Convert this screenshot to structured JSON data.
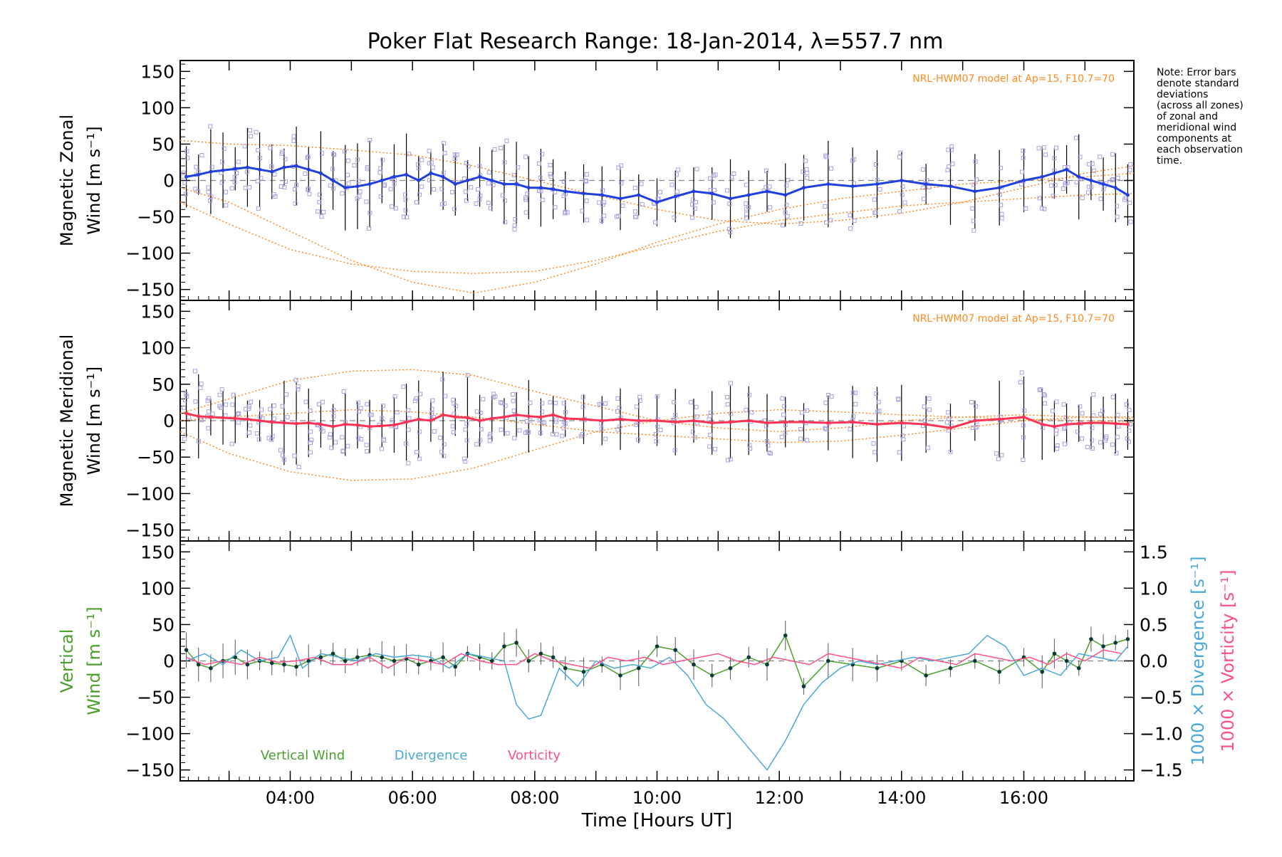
{
  "title": "Poker Flat Research Range: 18-Jan-2014, λ=557.7 nm",
  "note_lines": [
    "Note: Error bars",
    "denote standard",
    "deviations",
    "(across all zones)",
    "of zonal and",
    "meridional wind",
    "components at",
    "each observation",
    "time."
  ],
  "model_label": "NRL-HWM07 model at Ap=15, F10.7=70",
  "colors": {
    "zonal": "#1f3fe0",
    "meridional": "#ff3355",
    "vertical": "#4aa02a",
    "divergence": "#4aa8d8",
    "vorticity": "#ff4f8b",
    "model": "#ff8a1f",
    "scatter": "#a7a0dd",
    "errorbar": "#000000",
    "axis": "#000000",
    "zero": "#888888"
  },
  "chart_data": [
    {
      "type": "line",
      "panel": "zonal",
      "ylabel_lines": [
        "Magnetic Zonal",
        "Wind [m s⁻¹]"
      ],
      "ylim": [
        -165,
        165
      ],
      "yticks": [
        -150,
        -100,
        -50,
        0,
        50,
        100,
        150
      ],
      "xlim": [
        2.2,
        17.8
      ],
      "model_label": "NRL-HWM07 model at Ap=15, F10.7=70",
      "series": [
        {
          "x": [
            2.3,
            2.5,
            2.7,
            2.9,
            3.1,
            3.3,
            3.5,
            3.7,
            3.9,
            4.1,
            4.3,
            4.5,
            4.7,
            4.9,
            5.1,
            5.3,
            5.5,
            5.7,
            5.9,
            6.1,
            6.3,
            6.5,
            6.7,
            6.9,
            7.1,
            7.3,
            7.5,
            7.7,
            7.9,
            8.1,
            8.3,
            8.5,
            8.8,
            9.1,
            9.4,
            9.7,
            10.0,
            10.3,
            10.6,
            10.9,
            11.2,
            11.5,
            11.8,
            12.1,
            12.4,
            12.8,
            13.2,
            13.6,
            14.0,
            14.4,
            14.8,
            15.2,
            15.6,
            16.0,
            16.3,
            16.5,
            16.7,
            16.9,
            17.1,
            17.3,
            17.5,
            17.7
          ],
          "y": [
            5,
            8,
            12,
            14,
            16,
            18,
            15,
            12,
            18,
            20,
            15,
            10,
            0,
            -10,
            -8,
            -5,
            0,
            5,
            8,
            0,
            10,
            5,
            -5,
            0,
            5,
            0,
            -5,
            -5,
            -10,
            -10,
            -12,
            -15,
            -18,
            -20,
            -25,
            -20,
            -30,
            -22,
            -15,
            -18,
            -25,
            -20,
            -15,
            -20,
            -10,
            -5,
            -8,
            -5,
            0,
            -5,
            -8,
            -15,
            -10,
            0,
            5,
            10,
            15,
            5,
            0,
            -5,
            -10,
            -20
          ]
        }
      ],
      "model_curves": [
        {
          "x": [
            2.2,
            3,
            4,
            5,
            6,
            7,
            8,
            9,
            10,
            11,
            12,
            13,
            14,
            15,
            16,
            17,
            17.8
          ],
          "y": [
            55,
            50,
            48,
            42,
            35,
            20,
            0,
            -20,
            -40,
            -55,
            -60,
            -55,
            -45,
            -30,
            -10,
            10,
            20
          ]
        },
        {
          "x": [
            2.2,
            3,
            4,
            5,
            6,
            7,
            8,
            9,
            10,
            11,
            12,
            13,
            14,
            15,
            16,
            17,
            17.8
          ],
          "y": [
            -10,
            -30,
            -70,
            -110,
            -140,
            -155,
            -140,
            -115,
            -85,
            -60,
            -40,
            -25,
            -15,
            -5,
            0,
            5,
            10
          ]
        },
        {
          "x": [
            2.2,
            3,
            4,
            5,
            6,
            7,
            8,
            9,
            10,
            11,
            12,
            13,
            14,
            15,
            16,
            17,
            17.8
          ],
          "y": [
            -30,
            -60,
            -95,
            -115,
            -125,
            -128,
            -125,
            -110,
            -90,
            -70,
            -55,
            -45,
            -35,
            -30,
            -25,
            -20,
            -18
          ]
        }
      ]
    },
    {
      "type": "line",
      "panel": "meridional",
      "ylabel_lines": [
        "Magnetic Meridional",
        "Wind [m s⁻¹]"
      ],
      "ylim": [
        -165,
        165
      ],
      "yticks": [
        -150,
        -100,
        -50,
        0,
        50,
        100,
        150
      ],
      "xlim": [
        2.2,
        17.8
      ],
      "model_label": "NRL-HWM07 model at Ap=15, F10.7=70",
      "series": [
        {
          "x": [
            2.3,
            2.5,
            2.7,
            2.9,
            3.1,
            3.3,
            3.5,
            3.7,
            3.9,
            4.1,
            4.3,
            4.5,
            4.7,
            4.9,
            5.1,
            5.3,
            5.5,
            5.7,
            5.9,
            6.1,
            6.3,
            6.5,
            6.7,
            6.9,
            7.1,
            7.3,
            7.5,
            7.7,
            7.9,
            8.1,
            8.3,
            8.5,
            8.8,
            9.1,
            9.4,
            9.7,
            10.0,
            10.3,
            10.6,
            10.9,
            11.2,
            11.5,
            11.8,
            12.1,
            12.4,
            12.8,
            13.2,
            13.6,
            14.0,
            14.4,
            14.8,
            15.2,
            15.6,
            16.0,
            16.3,
            16.5,
            16.7,
            16.9,
            17.1,
            17.3,
            17.5,
            17.7
          ],
          "y": [
            10,
            6,
            5,
            4,
            3,
            2,
            0,
            -2,
            -3,
            -4,
            -3,
            -5,
            -8,
            -5,
            -6,
            -8,
            -7,
            -6,
            -2,
            2,
            0,
            8,
            5,
            4,
            0,
            3,
            5,
            8,
            6,
            5,
            8,
            3,
            2,
            0,
            2,
            0,
            0,
            -2,
            0,
            -3,
            -2,
            0,
            -3,
            -2,
            -2,
            -3,
            -2,
            -5,
            -3,
            -5,
            -10,
            0,
            2,
            5,
            -5,
            -8,
            -5,
            -4,
            -3,
            -3,
            -4,
            -5
          ]
        }
      ],
      "model_curves": [
        {
          "x": [
            2.2,
            3,
            4,
            5,
            6,
            7,
            8,
            9,
            10,
            11,
            12,
            13,
            14,
            15,
            16,
            17,
            17.8
          ],
          "y": [
            10,
            30,
            55,
            68,
            70,
            62,
            40,
            20,
            0,
            -10,
            -15,
            -10,
            0,
            5,
            8,
            5,
            3
          ]
        },
        {
          "x": [
            2.2,
            3,
            4,
            5,
            6,
            7,
            8,
            9,
            10,
            11,
            12,
            13,
            14,
            15,
            16,
            17,
            17.8
          ],
          "y": [
            -15,
            -45,
            -70,
            -82,
            -80,
            -65,
            -40,
            -15,
            0,
            10,
            15,
            12,
            8,
            5,
            2,
            0,
            -2
          ]
        },
        {
          "x": [
            2.2,
            3,
            4,
            5,
            6,
            7,
            8,
            9,
            10,
            11,
            12,
            13,
            14,
            15,
            16,
            17,
            17.8
          ],
          "y": [
            0,
            5,
            10,
            15,
            12,
            5,
            -5,
            -15,
            -20,
            -25,
            -30,
            -28,
            -20,
            -10,
            0,
            5,
            5
          ]
        }
      ]
    },
    {
      "type": "line",
      "panel": "vertical",
      "ylabel_left_lines": [
        "Vertical",
        "Wind [m s⁻¹]"
      ],
      "ylabel_right_1": "1000 × Divergence [s⁻¹]",
      "ylabel_right_2": "1000 × Vorticity [s⁻¹]",
      "ylim": [
        -165,
        165
      ],
      "yticks": [
        -150,
        -100,
        -50,
        0,
        50,
        100,
        150
      ],
      "y2lim": [
        -1.65,
        1.65
      ],
      "y2ticks": [
        -1.5,
        -1.0,
        -0.5,
        0.0,
        0.5,
        1.0,
        1.5
      ],
      "y2ticklabels": [
        "−1.5",
        "−1.0",
        "−0.5",
        "0.0",
        "0.5",
        "1.0",
        "1.5"
      ],
      "xlim": [
        2.2,
        17.8
      ],
      "xticks": [
        4,
        6,
        8,
        10,
        12,
        14,
        16
      ],
      "xticklabels": [
        "04:00",
        "06:00",
        "08:00",
        "10:00",
        "12:00",
        "14:00",
        "16:00"
      ],
      "xlabel": "Time [Hours UT]",
      "legend": [
        "Vertical Wind",
        "Divergence",
        "Vorticity"
      ],
      "series": [
        {
          "name": "Vertical Wind",
          "x": [
            2.3,
            2.5,
            2.7,
            2.9,
            3.1,
            3.3,
            3.5,
            3.7,
            3.9,
            4.1,
            4.3,
            4.5,
            4.7,
            4.9,
            5.1,
            5.3,
            5.5,
            5.7,
            5.9,
            6.1,
            6.3,
            6.5,
            6.7,
            6.9,
            7.1,
            7.3,
            7.5,
            7.7,
            7.9,
            8.1,
            8.3,
            8.5,
            8.8,
            9.1,
            9.4,
            9.7,
            10.0,
            10.3,
            10.6,
            10.9,
            11.2,
            11.5,
            11.8,
            12.1,
            12.4,
            12.8,
            13.2,
            13.6,
            14.0,
            14.4,
            14.8,
            15.2,
            15.6,
            16.0,
            16.3,
            16.5,
            16.7,
            16.9,
            17.1,
            17.3,
            17.5,
            17.7
          ],
          "y": [
            15,
            -5,
            -10,
            0,
            5,
            -5,
            0,
            -3,
            -5,
            -8,
            0,
            5,
            10,
            0,
            5,
            8,
            5,
            0,
            3,
            -5,
            0,
            5,
            -8,
            10,
            5,
            0,
            20,
            25,
            0,
            10,
            5,
            -10,
            -15,
            -5,
            -20,
            -10,
            20,
            15,
            -5,
            -20,
            -10,
            5,
            -5,
            35,
            -35,
            0,
            -5,
            -10,
            0,
            -20,
            -10,
            0,
            -15,
            5,
            -15,
            10,
            0,
            -10,
            30,
            20,
            25,
            30
          ]
        },
        {
          "name": "Divergence",
          "x": [
            2.3,
            2.6,
            2.9,
            3.2,
            3.5,
            3.8,
            4.0,
            4.2,
            4.5,
            4.8,
            5.1,
            5.4,
            5.7,
            6.0,
            6.3,
            6.6,
            6.9,
            7.2,
            7.5,
            7.7,
            7.9,
            8.1,
            8.4,
            8.7,
            9.0,
            9.3,
            9.6,
            9.9,
            10.2,
            10.5,
            10.8,
            11.1,
            11.4,
            11.8,
            12.1,
            12.4,
            12.7,
            13.0,
            13.3,
            13.6,
            13.9,
            14.2,
            14.5,
            14.8,
            15.1,
            15.4,
            15.7,
            16.0,
            16.3,
            16.6,
            16.9,
            17.2,
            17.5,
            17.7
          ],
          "y": [
            0.0,
            0.1,
            -0.05,
            0.15,
            0.0,
            0.05,
            0.35,
            -0.1,
            0.1,
            0.05,
            0.0,
            0.1,
            0.05,
            0.08,
            0.05,
            -0.1,
            0.1,
            0.05,
            0.0,
            -0.6,
            -0.8,
            -0.75,
            -0.1,
            -0.35,
            0.0,
            -0.1,
            -0.05,
            -0.1,
            0.05,
            -0.2,
            -0.6,
            -0.8,
            -1.1,
            -1.5,
            -1.1,
            -0.6,
            -0.3,
            -0.1,
            0.0,
            -0.05,
            0.0,
            0.05,
            0.0,
            0.05,
            0.1,
            0.35,
            0.2,
            -0.2,
            -0.1,
            -0.2,
            0.1,
            0.05,
            0.0,
            0.2
          ]
        },
        {
          "name": "Vorticity",
          "x": [
            2.3,
            2.6,
            2.9,
            3.2,
            3.5,
            3.8,
            4.1,
            4.4,
            4.7,
            5.0,
            5.3,
            5.6,
            5.9,
            6.2,
            6.5,
            6.8,
            7.1,
            7.4,
            7.7,
            8.0,
            8.3,
            8.6,
            8.9,
            9.2,
            9.5,
            9.8,
            10.1,
            10.4,
            10.7,
            11.0,
            11.3,
            11.6,
            11.9,
            12.2,
            12.5,
            12.8,
            13.1,
            13.4,
            13.7,
            14.0,
            14.3,
            14.6,
            14.9,
            15.2,
            15.5,
            15.8,
            16.1,
            16.4,
            16.7,
            17.0,
            17.3,
            17.6
          ],
          "y": [
            0.05,
            -0.05,
            0.0,
            -0.05,
            0.05,
            -0.02,
            0.0,
            0.05,
            -0.05,
            -0.05,
            0.05,
            -0.1,
            0.05,
            0.0,
            -0.05,
            0.1,
            0.0,
            -0.05,
            -0.05,
            0.1,
            0.0,
            -0.05,
            -0.1,
            0.05,
            0.0,
            0.05,
            -0.05,
            0.0,
            0.05,
            0.1,
            0.0,
            -0.05,
            0.05,
            0.0,
            -0.05,
            0.1,
            0.05,
            0.0,
            -0.05,
            -0.1,
            0.05,
            0.0,
            -0.05,
            0.1,
            0.05,
            0.0,
            0.05,
            -0.05,
            0.1,
            0.0,
            0.15,
            0.1
          ]
        }
      ]
    }
  ]
}
